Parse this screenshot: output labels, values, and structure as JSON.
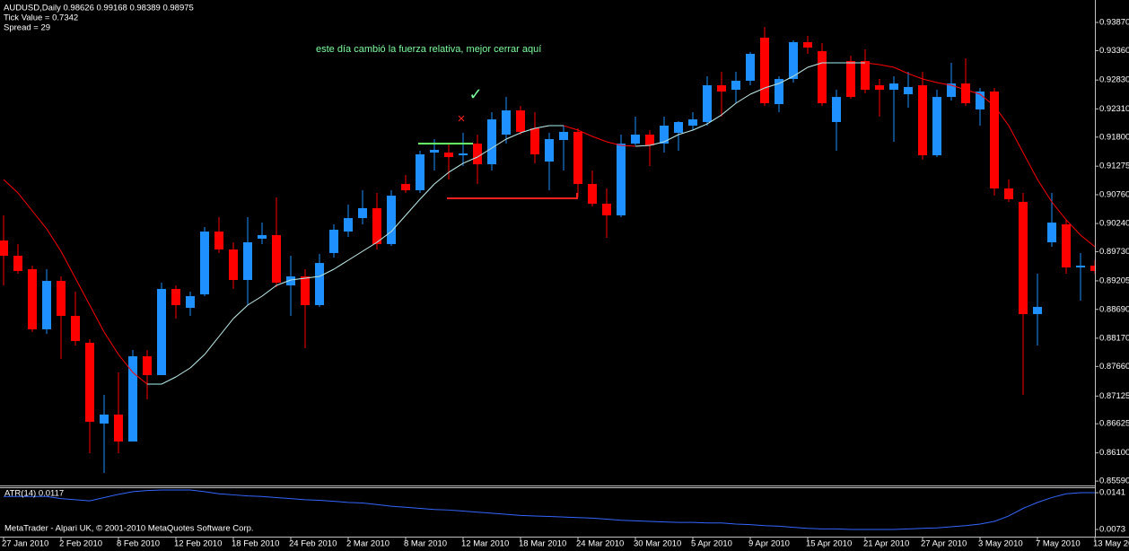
{
  "header": {
    "symbol_line": "AUDUSD,Daily 0.98626 0.99168 0.98389 0.98975",
    "tick_value": "Tick Value = 0.7342",
    "spread": "Spread = 29"
  },
  "footer": "MetaTrader - Alpari UK, © 2001-2010 MetaQuotes Software Corp.",
  "chart_data": [
    {
      "type": "candlestick",
      "categories": [
        "27 Jan 2010",
        null,
        null,
        null,
        "2 Feb 2010",
        null,
        null,
        null,
        "8 Feb 2010",
        null,
        null,
        null,
        "12 Feb 2010",
        null,
        null,
        null,
        "18 Feb 2010",
        null,
        null,
        null,
        "24 Feb 2010",
        null,
        null,
        null,
        "2 Mar 2010",
        null,
        null,
        null,
        "8 Mar 2010",
        null,
        null,
        null,
        "12 Mar 2010",
        null,
        null,
        null,
        "18 Mar 2010",
        null,
        null,
        null,
        "24 Mar 2010",
        null,
        null,
        null,
        "30 Mar 2010",
        null,
        null,
        null,
        "5 Apr 2010",
        null,
        null,
        null,
        "9 Apr 2010",
        null,
        null,
        null,
        "15 Apr 2010",
        null,
        null,
        null,
        "21 Apr 2010",
        null,
        null,
        null,
        "27 Apr 2010",
        null,
        null,
        null,
        "3 May 2010",
        null,
        null,
        null,
        "7 May 2010",
        null,
        null,
        null,
        "13 May 2010"
      ],
      "open": [
        0.89933,
        0.89658,
        0.89415,
        0.8833,
        0.89204,
        0.88573,
        0.88087,
        0.86629,
        0.86791,
        0.86305,
        0.87844,
        0.87503,
        0.89059,
        0.88718,
        0.88961,
        0.90095,
        0.89771,
        0.89221,
        0.89966,
        0.90031,
        0.89123,
        0.89285,
        0.88767,
        0.89707,
        0.90095,
        0.90338,
        0.90517,
        0.89869,
        0.90954,
        0.90841,
        0.91521,
        0.91521,
        0.91472,
        0.91683,
        0.9131,
        0.91845,
        0.92282,
        0.91958,
        0.91359,
        0.91748,
        0.91894,
        0.90954,
        0.90598,
        0.90387,
        0.91683,
        0.91845,
        0.91683,
        0.91877,
        0.92007,
        0.92072,
        0.92736,
        0.92655,
        0.92817,
        0.93595,
        0.92396,
        0.92849,
        0.93514,
        0.93352,
        0.92072,
        0.93173,
        0.93173,
        0.92736,
        0.92655,
        0.92574,
        0.92736,
        0.91472,
        0.92525,
        0.92768,
        0.92299,
        0.92623,
        0.90873,
        0.9063,
        0.88605,
        0.89901,
        0.90225,
        0.89447,
        0.8948
      ],
      "high": [
        0.90387,
        0.89869,
        0.8948,
        0.89415,
        0.89285,
        0.8901,
        0.88151,
        0.87147,
        0.87552,
        0.87957,
        0.87957,
        0.89172,
        0.89123,
        0.8901,
        0.90176,
        0.90355,
        0.89901,
        0.90355,
        0.90257,
        0.90711,
        0.89658,
        0.89415,
        0.8969,
        0.90225,
        0.90581,
        0.90841,
        0.90792,
        0.90841,
        0.91116,
        0.91553,
        0.91764,
        0.91683,
        0.91877,
        0.91845,
        0.9225,
        0.92525,
        0.92363,
        0.9225,
        0.91877,
        0.92007,
        0.91958,
        0.91197,
        0.90873,
        0.91845,
        0.92169,
        0.91926,
        0.92169,
        0.92088,
        0.9225,
        0.92898,
        0.92979,
        0.92979,
        0.93335,
        0.93789,
        0.92898,
        0.93546,
        0.93627,
        0.93497,
        0.92655,
        0.93271,
        0.93384,
        0.92849,
        0.92898,
        0.92979,
        0.92979,
        0.92655,
        0.93141,
        0.93222,
        0.92687,
        0.92687,
        0.91035,
        0.90792,
        0.89334,
        0.90792,
        0.90306,
        0.89707,
        0.89577
      ],
      "low": [
        0.89123,
        0.89334,
        0.88281,
        0.88249,
        0.87795,
        0.88038,
        0.86094,
        0.85738,
        0.86094,
        0.86305,
        0.87066,
        0.87503,
        0.88524,
        0.88573,
        0.88929,
        0.89707,
        0.89059,
        0.88767,
        0.89869,
        0.89091,
        0.88573,
        0.87989,
        0.88735,
        0.89626,
        0.89998,
        0.90225,
        0.89771,
        0.89836,
        0.90792,
        0.90792,
        0.91197,
        0.91035,
        0.91278,
        0.90954,
        0.91197,
        0.91683,
        0.91845,
        0.91327,
        0.90841,
        0.91197,
        0.90711,
        0.90549,
        0.89982,
        0.90355,
        0.91651,
        0.91278,
        0.91521,
        0.91553,
        0.91926,
        0.92007,
        0.92169,
        0.92412,
        0.92736,
        0.92363,
        0.9225,
        0.92785,
        0.93303,
        0.92363,
        0.91553,
        0.92493,
        0.9259,
        0.92169,
        0.91715,
        0.92331,
        0.91391,
        0.9144,
        0.92461,
        0.92363,
        0.92007,
        0.90743,
        0.9063,
        0.87147,
        0.88038,
        0.8982,
        0.89334,
        0.88848,
        0.89334
      ],
      "close": [
        0.89658,
        0.89383,
        0.8833,
        0.89204,
        0.88573,
        0.88119,
        0.86661,
        0.86791,
        0.86305,
        0.87844,
        0.87503,
        0.89059,
        0.88767,
        0.88929,
        0.90095,
        0.89771,
        0.89221,
        0.89901,
        0.90031,
        0.89172,
        0.89285,
        0.88767,
        0.89528,
        0.90128,
        0.90338,
        0.90517,
        0.89869,
        0.90743,
        0.90841,
        0.91489,
        0.9157,
        0.9144,
        0.91505,
        0.9131,
        0.9212,
        0.92282,
        0.91894,
        0.91489,
        0.91764,
        0.91894,
        0.90954,
        0.90598,
        0.90387,
        0.91683,
        0.91845,
        0.91651,
        0.92007,
        0.92072,
        0.9212,
        0.92736,
        0.92623,
        0.92817,
        0.93303,
        0.92412,
        0.92849,
        0.93514,
        0.93416,
        0.92412,
        0.92525,
        0.92525,
        0.92655,
        0.92655,
        0.92768,
        0.92704,
        0.91472,
        0.92525,
        0.92768,
        0.92412,
        0.92623,
        0.90873,
        0.90679,
        0.88605,
        0.88735,
        0.90257,
        0.89447,
        0.8948,
        0.89383
      ],
      "up_color": "#1e90ff",
      "down_color": "#ff0000",
      "series": [
        {
          "values": [
            0.91035,
            0.90792,
            0.90468,
            0.90144,
            0.89739,
            0.89253,
            0.88767,
            0.88281,
            0.87876,
            0.87552,
            0.87341,
            0.87341,
            0.87471,
            0.87633,
            0.87876,
            0.882,
            0.88524,
            0.88767,
            0.88929,
            0.89123,
            0.89221,
            0.89253,
            0.89285,
            0.89415,
            0.89577,
            0.89739,
            0.89901,
            0.90095,
            0.90387,
            0.90679,
            0.90954,
            0.91165,
            0.91327,
            0.9144,
            0.91602,
            0.91764,
            0.91877,
            0.91958,
            0.92007,
            0.92007,
            0.91926,
            0.91813,
            0.91715,
            0.91651,
            0.91634,
            0.91651,
            0.91715,
            0.91845,
            0.91926,
            0.92039,
            0.92201,
            0.92412,
            0.92574,
            0.92687,
            0.92768,
            0.92898,
            0.9306,
            0.93141,
            0.93141,
            0.93141,
            0.93141,
            0.93109,
            0.9306,
            0.92947,
            0.92849,
            0.92785,
            0.92736,
            0.92655,
            0.92574,
            0.92363,
            0.92007,
            0.91521,
            0.91035,
            0.9063,
            0.90306,
            0.90031,
            0.8982
          ],
          "color": "#ff0000",
          "rising_color": "#9ff5f5"
        }
      ],
      "ylim": [
        0.85527,
        0.94194
      ],
      "yticks": [
        {
          "value": 0.9387,
          "label": "0.93870"
        },
        {
          "value": 0.9336,
          "label": "0.93360"
        },
        {
          "value": 0.9283,
          "label": "0.92830"
        },
        {
          "value": 0.9231,
          "label": "0.92310"
        },
        {
          "value": 0.918,
          "label": "0.91800"
        },
        0.91275,
        {
          "value": 0.9076,
          "label": "0.90760"
        },
        {
          "value": 0.9024,
          "label": "0.90240"
        },
        {
          "value": 0.8973,
          "label": "0.89730"
        },
        0.89205,
        {
          "value": 0.8869,
          "label": "0.88690"
        },
        {
          "value": 0.8817,
          "label": "0.88170"
        },
        {
          "value": 0.8766,
          "label": "0.87660"
        },
        0.87125,
        0.86625,
        {
          "value": 0.861,
          "label": "0.86100"
        },
        {
          "value": 0.8559,
          "label": "0.85590"
        }
      ],
      "grid": false,
      "annotations": [
        {
          "text": "este día cambió la fuerza relativa, mejor cerrar aquí",
          "color": "#7dffa0"
        },
        {
          "text": "✓",
          "color": "#7dffa0"
        },
        {
          "text": "×",
          "color": "#ff2020"
        }
      ]
    },
    {
      "type": "line",
      "title": "ATR(14) 0.0117",
      "series": [
        {
          "values": [
            0.0134,
            0.0134,
            0.0134,
            0.0134,
            0.013,
            0.0128,
            0.0126,
            0.0132,
            0.0138,
            0.0143,
            0.0145,
            0.0146,
            0.0146,
            0.0146,
            0.0143,
            0.0139,
            0.0137,
            0.0135,
            0.0134,
            0.0132,
            0.013,
            0.0128,
            0.0127,
            0.0125,
            0.0123,
            0.0122,
            0.0119,
            0.0116,
            0.0114,
            0.0112,
            0.011,
            0.0109,
            0.0107,
            0.0105,
            0.0103,
            0.0101,
            0.0099,
            0.0098,
            0.0097,
            0.0096,
            0.0095,
            0.0094,
            0.0092,
            0.009,
            0.0089,
            0.0088,
            0.0087,
            0.0086,
            0.0086,
            0.0085,
            0.0085,
            0.0083,
            0.0082,
            0.008,
            0.0079,
            0.0077,
            0.0075,
            0.0074,
            0.0074,
            0.0073,
            0.0073,
            0.0073,
            0.0073,
            0.0074,
            0.0075,
            0.0076,
            0.0078,
            0.008,
            0.0083,
            0.0088,
            0.0098,
            0.0112,
            0.0123,
            0.0132,
            0.0139,
            0.0141,
            0.0141
          ],
          "color": "#3366ff"
        }
      ],
      "ylim": [
        0.00614,
        0.0151
      ],
      "yticks": [
        0.0141,
        0.0073
      ]
    }
  ]
}
